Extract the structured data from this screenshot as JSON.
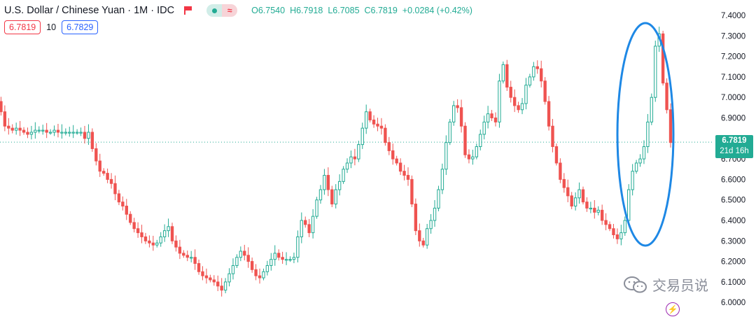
{
  "header": {
    "symbol": "U.S. Dollar / Chinese Yuan · 1M · IDC",
    "ohlc": {
      "open": "O6.7540",
      "high": "H6.7918",
      "low": "L6.7085",
      "close": "C6.7819",
      "change": "+0.0284 (+0.42%)"
    }
  },
  "quote": {
    "sell": "6.7819",
    "spread": "10",
    "buy": "6.7829"
  },
  "price_label": {
    "price": "6.7819",
    "countdown": "21d 16h"
  },
  "watermark": {
    "text": "交易员说"
  },
  "colors": {
    "up": "#22ab94",
    "down": "#ef5350",
    "highlight": "#1e88e5",
    "price_line": "#22ab94"
  },
  "icons": [
    "flag-icon",
    "status-dot-icon",
    "wave-icon",
    "wechat-icon",
    "bolt-icon"
  ],
  "chart_data": {
    "type": "candlestick",
    "title": "U.S. Dollar / Chinese Yuan · 1M · IDC",
    "ylim": [
      5.98,
      7.42
    ],
    "yticks": [
      "7.4000",
      "7.3000",
      "7.2000",
      "7.1000",
      "7.0000",
      "6.9000",
      "6.8000",
      "6.7000",
      "6.6000",
      "6.5000",
      "6.4000",
      "6.3000",
      "6.2000",
      "6.1000",
      "6.0000"
    ],
    "last_price": 6.7819,
    "annotation": "ellipse highlighting the 2022 rally from ~6.31 to ~7.33",
    "closes": [
      6.98,
      6.93,
      6.86,
      6.85,
      6.84,
      6.85,
      6.84,
      6.83,
      6.82,
      6.83,
      6.84,
      6.84,
      6.84,
      6.83,
      6.83,
      6.84,
      6.83,
      6.83,
      6.83,
      6.83,
      6.83,
      6.83,
      6.83,
      6.8,
      6.83,
      6.75,
      6.69,
      6.64,
      6.63,
      6.6,
      6.58,
      6.53,
      6.49,
      6.47,
      6.43,
      6.39,
      6.36,
      6.34,
      6.32,
      6.3,
      6.29,
      6.28,
      6.29,
      6.32,
      6.35,
      6.37,
      6.3,
      6.27,
      6.24,
      6.23,
      6.22,
      6.22,
      6.19,
      6.15,
      6.13,
      6.12,
      6.11,
      6.1,
      6.08,
      6.06,
      6.1,
      6.14,
      6.18,
      6.22,
      6.25,
      6.23,
      6.2,
      6.16,
      6.13,
      6.12,
      6.15,
      6.18,
      6.21,
      6.24,
      6.22,
      6.21,
      6.21,
      6.21,
      6.22,
      6.32,
      6.4,
      6.38,
      6.34,
      6.42,
      6.5,
      6.55,
      6.62,
      6.55,
      6.48,
      6.55,
      6.59,
      6.65,
      6.68,
      6.71,
      6.7,
      6.77,
      6.85,
      6.93,
      6.89,
      6.87,
      6.86,
      6.85,
      6.78,
      6.74,
      6.7,
      6.68,
      6.64,
      6.62,
      6.6,
      6.48,
      6.35,
      6.3,
      6.28,
      6.36,
      6.4,
      6.46,
      6.55,
      6.65,
      6.78,
      6.88,
      6.96,
      6.95,
      6.86,
      6.72,
      6.7,
      6.71,
      6.76,
      6.82,
      6.88,
      6.92,
      6.9,
      6.88,
      7.08,
      7.16,
      7.05,
      7.0,
      6.96,
      6.94,
      6.97,
      7.06,
      7.1,
      7.15,
      7.14,
      7.08,
      6.98,
      6.86,
      6.76,
      6.68,
      6.6,
      6.56,
      6.52,
      6.47,
      6.51,
      6.55,
      6.49,
      6.46,
      6.46,
      6.44,
      6.45,
      6.4,
      6.38,
      6.36,
      6.33,
      6.31,
      6.34,
      6.4,
      6.55,
      6.64,
      6.68,
      6.7,
      6.76,
      6.88,
      7.0,
      7.25,
      7.31,
      7.07,
      6.94,
      6.78
    ]
  }
}
